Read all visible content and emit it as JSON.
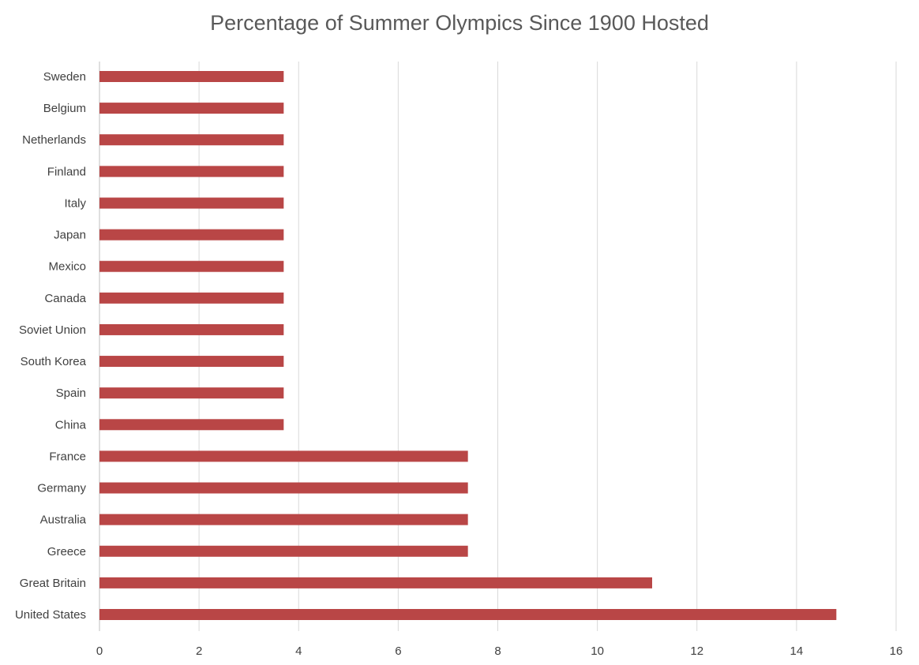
{
  "chart_data": {
    "type": "bar",
    "orientation": "horizontal",
    "title": "Percentage of Summer Olympics Since 1900 Hosted",
    "xlabel": "",
    "ylabel": "",
    "categories": [
      "Sweden",
      "Belgium",
      "Netherlands",
      "Finland",
      "Italy",
      "Japan",
      "Mexico",
      "Canada",
      "Soviet Union",
      "South Korea",
      "Spain",
      "China",
      "France",
      "Germany",
      "Australia",
      "Greece",
      "Great Britain",
      "United States"
    ],
    "values": [
      3.7,
      3.7,
      3.7,
      3.7,
      3.7,
      3.7,
      3.7,
      3.7,
      3.7,
      3.7,
      3.7,
      3.7,
      7.4,
      7.4,
      7.4,
      7.4,
      11.1,
      14.8
    ],
    "xlim": [
      0,
      16
    ],
    "xticks": [
      "0",
      "2",
      "4",
      "6",
      "8",
      "10",
      "12",
      "14",
      "16"
    ],
    "grid": true,
    "legend": "none",
    "colors": {
      "bar": "#b94646",
      "grid": "#d9d9d9",
      "text": "#404040",
      "title": "#595959"
    }
  }
}
